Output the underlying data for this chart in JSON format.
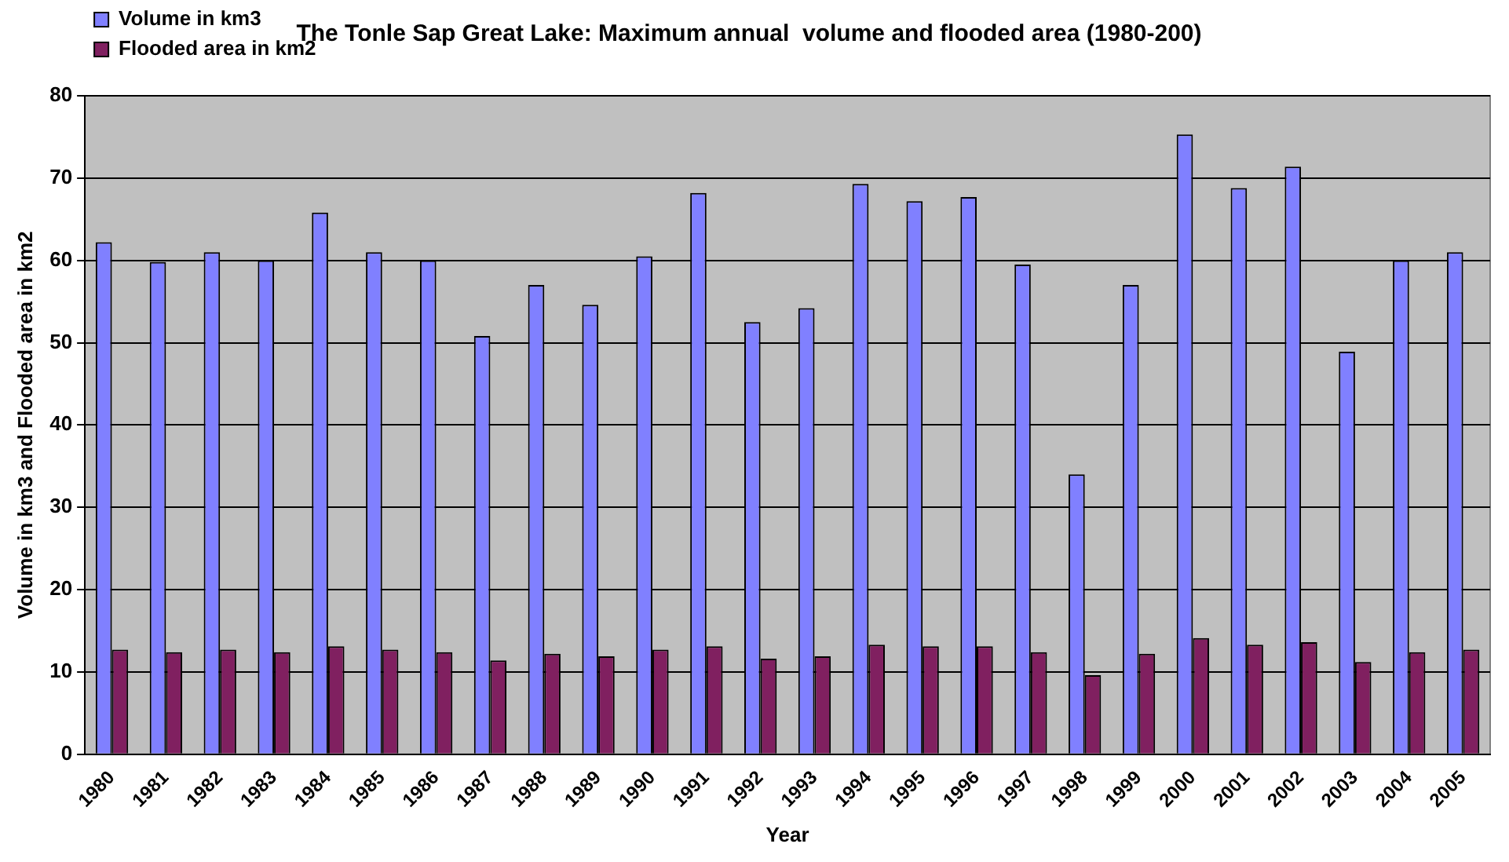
{
  "chart_data": {
    "type": "bar",
    "title": "The Tonle Sap Great Lake: Maximum annual  volume and flooded area (1980-200)",
    "xlabel": "Year",
    "ylabel": "Volume in km3 and Flooded area in km2",
    "categories": [
      "1980",
      "1981",
      "1982",
      "1983",
      "1984",
      "1985",
      "1986",
      "1987",
      "1988",
      "1989",
      "1990",
      "1991",
      "1992",
      "1993",
      "1994",
      "1995",
      "1996",
      "1997",
      "1998",
      "1999",
      "2000",
      "2001",
      "2002",
      "2003",
      "2004",
      "2005"
    ],
    "series": [
      {
        "name": "Volume in km3",
        "color": "#8080ff",
        "values": [
          62.2,
          59.8,
          61,
          60,
          65.8,
          61,
          60,
          50.8,
          57,
          54.6,
          60.5,
          68.2,
          52.5,
          54.2,
          69.3,
          67.2,
          67.7,
          59.5,
          34,
          57,
          75.3,
          68.8,
          71.4,
          48.9,
          60,
          61
        ]
      },
      {
        "name": "Flooded area in km2",
        "color": "#802060",
        "values": [
          12.7,
          12.4,
          12.7,
          12.4,
          13.1,
          12.7,
          12.4,
          11.4,
          12.2,
          11.9,
          12.7,
          13.1,
          11.6,
          11.9,
          13.3,
          13.1,
          13.1,
          12.4,
          9.6,
          12.2,
          14.1,
          13.3,
          13.6,
          11.2,
          12.4,
          12.7
        ]
      }
    ],
    "ylim": [
      0,
      80
    ],
    "yticks": [
      0,
      10,
      20,
      30,
      40,
      50,
      60,
      70,
      80
    ],
    "grid": "y",
    "legend": "top left"
  }
}
